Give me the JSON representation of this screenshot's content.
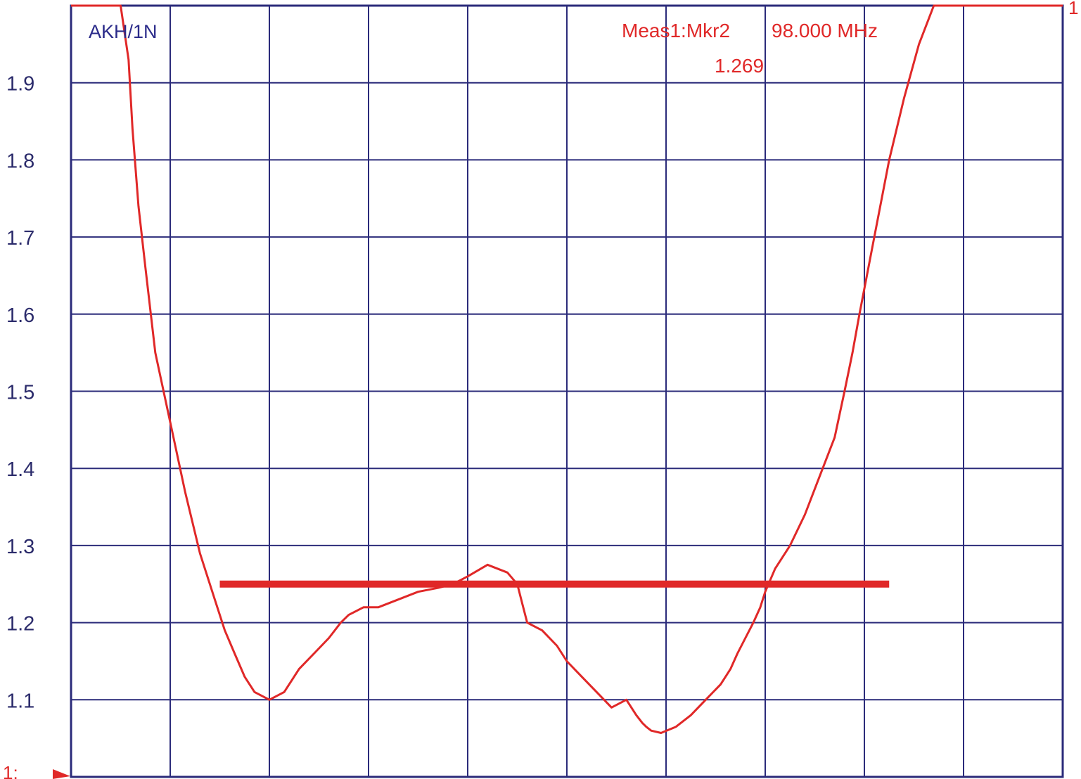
{
  "chart_data": {
    "type": "line",
    "trace_label": "AKH/1N",
    "marker": {
      "name": "Meas1:Mkr2",
      "frequency": "98.000 MHz",
      "value_text": "1.269",
      "value": 1.269
    },
    "reference_level_label": "1:",
    "right_edge_label": "1",
    "y_ticks": [
      "1.1",
      "1.2",
      "1.3",
      "1.4",
      "1.5",
      "1.6",
      "1.7",
      "1.8",
      "1.9"
    ],
    "ylim": [
      1.0,
      2.0
    ],
    "xlim": [
      0,
      10
    ],
    "grid": true,
    "threshold_line": {
      "y": 1.25,
      "x": [
        1.5,
        8.25
      ]
    },
    "series": [
      {
        "x": [
          0.0,
          0.5,
          0.58,
          0.62,
          0.68,
          0.75,
          0.85,
          1.0,
          1.15,
          1.3,
          1.45,
          1.55,
          1.65,
          1.75,
          1.85,
          2.0,
          2.15,
          2.3,
          2.45,
          2.6,
          2.72,
          2.8,
          2.95,
          3.1,
          3.3,
          3.5,
          3.7,
          3.85,
          4.0,
          4.2,
          4.4,
          4.5,
          4.55,
          4.6,
          4.75,
          4.9,
          5.0,
          5.15,
          5.3,
          5.45,
          5.6,
          5.7,
          5.76,
          5.8,
          5.85,
          5.95,
          6.1,
          6.25,
          6.4,
          6.55,
          6.65,
          6.72,
          6.8,
          6.88,
          6.95,
          7.0,
          7.1,
          7.25,
          7.4,
          7.55,
          7.7,
          7.8,
          7.88,
          7.95,
          8.1,
          8.25,
          8.4,
          8.55,
          8.7,
          8.85,
          9.0,
          9.1,
          9.2,
          9.3,
          9.4,
          9.5,
          9.6,
          9.7,
          9.75,
          9.8,
          10.0
        ],
        "y": [
          2.0,
          2.0,
          1.93,
          1.84,
          1.74,
          1.66,
          1.55,
          1.46,
          1.37,
          1.29,
          1.23,
          1.19,
          1.16,
          1.13,
          1.11,
          1.1,
          1.11,
          1.14,
          1.16,
          1.18,
          1.2,
          1.21,
          1.22,
          1.22,
          1.23,
          1.24,
          1.245,
          1.25,
          1.26,
          1.275,
          1.265,
          1.25,
          1.225,
          1.2,
          1.19,
          1.17,
          1.15,
          1.13,
          1.11,
          1.09,
          1.1,
          1.08,
          1.07,
          1.065,
          1.06,
          1.057,
          1.065,
          1.08,
          1.1,
          1.12,
          1.14,
          1.16,
          1.18,
          1.2,
          1.22,
          1.24,
          1.27,
          1.3,
          1.34,
          1.39,
          1.44,
          1.5,
          1.55,
          1.6,
          1.7,
          1.8,
          1.88,
          1.95,
          2.0,
          2.0,
          2.0,
          2.0,
          2.0,
          2.0,
          2.0,
          2.0,
          2.0,
          2.0,
          2.0,
          2.0,
          2.0
        ]
      }
    ],
    "colors": {
      "grid": "#2b2b7a",
      "trace": "#e02828",
      "threshold": "#e02828",
      "tick_text": "#2b2b6b"
    }
  }
}
